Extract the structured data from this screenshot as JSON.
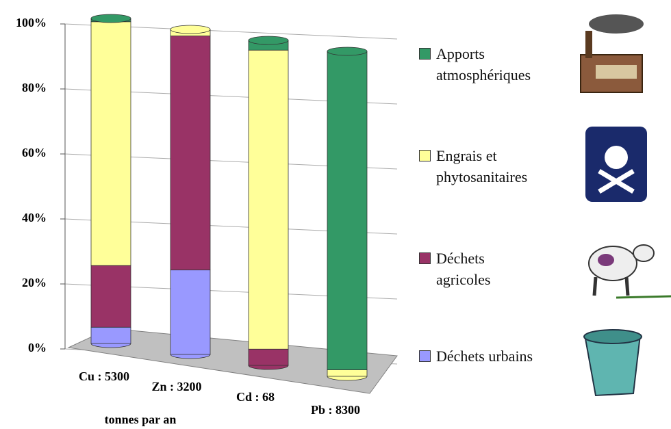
{
  "chart_data": {
    "type": "bar",
    "stacked": true,
    "categories": [
      "Cu : 5300",
      "Zn : 3200",
      "Cd : 68",
      "Pb : 8300"
    ],
    "x_label": "tonnes par an",
    "series": [
      {
        "name": "Déchets urbains",
        "color": "#9999ff",
        "values": [
          5,
          26,
          0,
          0
        ]
      },
      {
        "name": "Déchets agricoles",
        "color": "#993366",
        "values": [
          19,
          72,
          5,
          0
        ]
      },
      {
        "name": "Engrais et phytosanitaires",
        "color": "#ffff99",
        "values": [
          75,
          2,
          92,
          2
        ]
      },
      {
        "name": "Apports atmosphériques",
        "color": "#339966",
        "values": [
          1,
          0,
          3,
          98
        ]
      }
    ],
    "ylim": [
      0,
      100
    ],
    "yticks": [
      {
        "value": 0,
        "label": "0%"
      },
      {
        "value": 20,
        "label": "20%"
      },
      {
        "value": 40,
        "label": "40%"
      },
      {
        "value": 60,
        "label": "60%"
      },
      {
        "value": 80,
        "label": "80%"
      },
      {
        "value": 100,
        "label": "100%"
      }
    ],
    "grid": true
  }
}
